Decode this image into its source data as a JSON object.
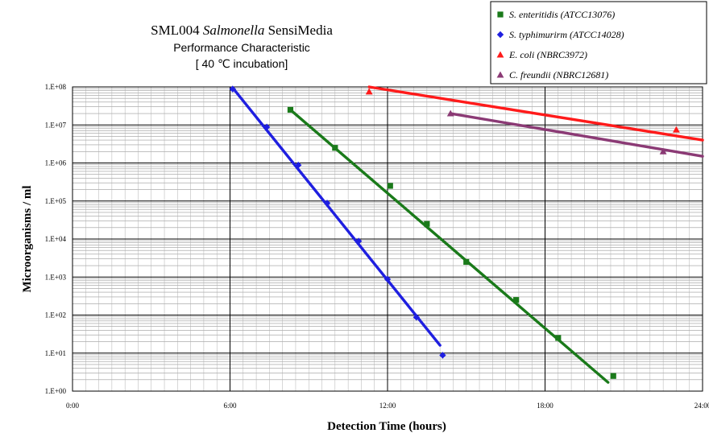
{
  "chart_data": {
    "type": "scatter",
    "title": {
      "prefix": "SML004 ",
      "italic": "Salmonella",
      "suffix": "  SensiMedia"
    },
    "subtitle_lines": [
      "Performance Characteristic",
      "[ 40 ℃ incubation]"
    ],
    "xlabel": "Detection Time (hours)",
    "ylabel": "Microorganisms / ml",
    "x_unit": "hours",
    "xlim": [
      0,
      24
    ],
    "x_ticks": [
      {
        "value": 0,
        "label": "0:00"
      },
      {
        "value": 6,
        "label": "6:00"
      },
      {
        "value": 12,
        "label": "12:00"
      },
      {
        "value": 18,
        "label": "18:00"
      },
      {
        "value": 24,
        "label": "24:00"
      }
    ],
    "y_scale": "log",
    "ylim": [
      1,
      100000000
    ],
    "y_ticks": [
      {
        "value": 1,
        "label": "1.E+00"
      },
      {
        "value": 10,
        "label": "1.E+01"
      },
      {
        "value": 100,
        "label": "1.E+02"
      },
      {
        "value": 1000,
        "label": "1.E+03"
      },
      {
        "value": 10000,
        "label": "1.E+04"
      },
      {
        "value": 100000,
        "label": "1.E+05"
      },
      {
        "value": 1000000,
        "label": "1.E+06"
      },
      {
        "value": 10000000,
        "label": "1.E+07"
      },
      {
        "value": 100000000,
        "label": "1.E+08"
      }
    ],
    "grid": true,
    "legend_position": "top-right",
    "series": [
      {
        "name_italic": "S. enteritidis",
        "name_rest": " (ATCC13076)",
        "color": "#1a7a1a",
        "marker": "square",
        "points": [
          [
            8.3,
            25000000
          ],
          [
            10.0,
            2500000
          ],
          [
            12.1,
            250000
          ],
          [
            13.5,
            25000
          ],
          [
            15.0,
            2500
          ],
          [
            16.9,
            250
          ],
          [
            18.5,
            25
          ],
          [
            20.6,
            2.5
          ]
        ],
        "trend": [
          [
            8.3,
            25000000
          ],
          [
            20.4,
            1.7
          ]
        ]
      },
      {
        "name_italic": "S. typhimurirm",
        "name_rest": " (ATCC14028)",
        "color": "#1f1fe0",
        "marker": "diamond",
        "points": [
          [
            6.1,
            88000000
          ],
          [
            7.4,
            8800000
          ],
          [
            8.6,
            880000
          ],
          [
            9.7,
            88000
          ],
          [
            10.9,
            8800
          ],
          [
            12.0,
            880
          ],
          [
            13.1,
            88
          ],
          [
            14.1,
            8.8
          ]
        ],
        "trend": [
          [
            6.1,
            95000000
          ],
          [
            14.0,
            16
          ]
        ]
      },
      {
        "name_italic": "E. coli",
        "name_rest": " (NBRC3972)",
        "color": "#ff1a1a",
        "marker": "triangle",
        "points": [
          [
            11.3,
            75000000
          ],
          [
            23.0,
            7500000
          ]
        ],
        "trend": [
          [
            11.3,
            100000000
          ],
          [
            24.0,
            4000000
          ]
        ]
      },
      {
        "name_italic": "C. freundii",
        "name_rest": " (NBRC12681)",
        "color": "#8b3a75",
        "marker": "triangle",
        "points": [
          [
            14.4,
            20000000
          ],
          [
            22.5,
            2000000
          ]
        ],
        "trend": [
          [
            14.4,
            20000000
          ],
          [
            24.0,
            1500000
          ]
        ]
      }
    ]
  }
}
